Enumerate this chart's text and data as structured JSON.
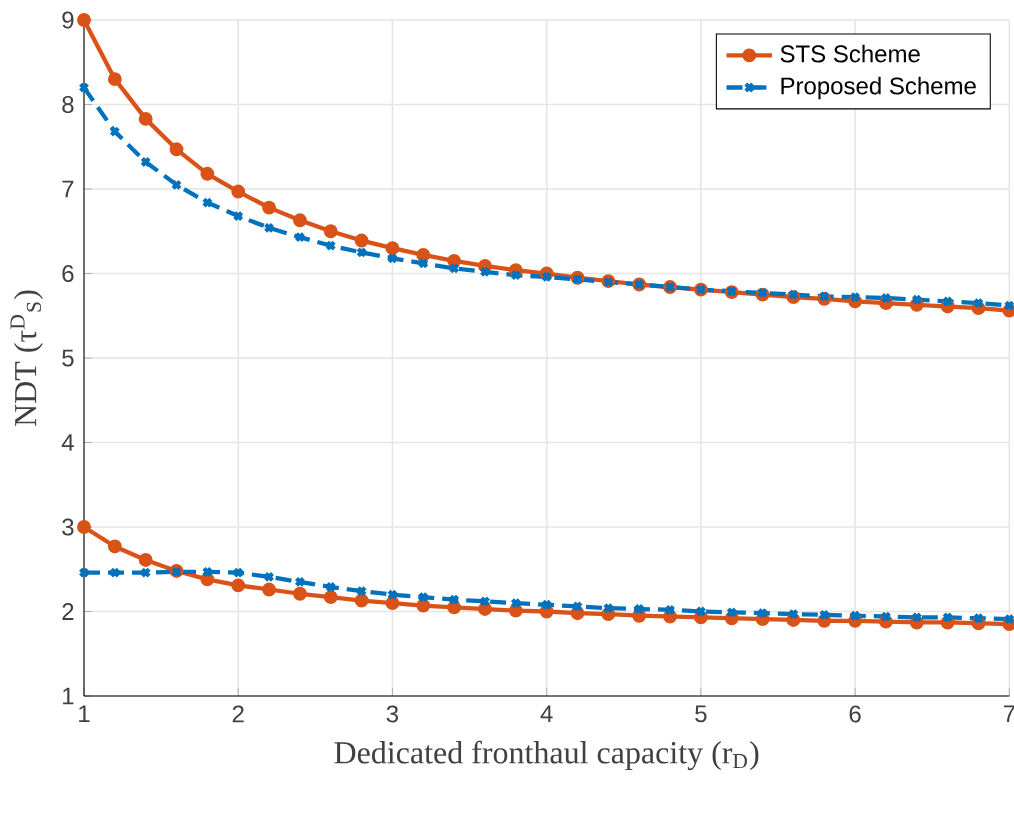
{
  "chart_data": {
    "type": "line",
    "xlabel": "Dedicated fronthaul capacity (r$_{D}$)",
    "ylabel": "NDT (τ$^{D}$$_{S}$)",
    "x": [
      1,
      1.2,
      1.4,
      1.6,
      1.8,
      2,
      2.2,
      2.4,
      2.6,
      2.8,
      3,
      3.2,
      3.4,
      3.6,
      3.8,
      4,
      4.2,
      4.4,
      4.6,
      4.8,
      5,
      5.2,
      5.4,
      5.6,
      5.8,
      6,
      6.2,
      6.4,
      6.6,
      6.8,
      7
    ],
    "xlim": [
      1,
      7
    ],
    "xticks": [
      1,
      2,
      3,
      4,
      5,
      6,
      7
    ],
    "ylim": [
      1,
      9
    ],
    "yticks": [
      1,
      2,
      3,
      4,
      5,
      6,
      7,
      8,
      9
    ],
    "grid": true,
    "legend": "top right",
    "series": [
      {
        "name": "STS Scheme",
        "color": "#d95319",
        "marker": "circle",
        "line_style": "solid",
        "values": [
          9,
          8.3,
          7.83,
          7.47,
          7.18,
          6.97,
          6.78,
          6.63,
          6.5,
          6.39,
          6.3,
          6.22,
          6.15,
          6.09,
          6.04,
          6.0,
          5.95,
          5.91,
          5.87,
          5.84,
          5.81,
          5.78,
          5.75,
          5.72,
          5.7,
          5.67,
          5.65,
          5.63,
          5.61,
          5.59,
          5.56
        ]
      },
      {
        "name": "Proposed Scheme",
        "color": "#0072bd",
        "marker": "cross",
        "line_style": "dashed",
        "values": [
          8.2,
          7.68,
          7.32,
          7.05,
          6.84,
          6.68,
          6.54,
          6.43,
          6.33,
          6.25,
          6.18,
          6.12,
          6.06,
          6.02,
          5.98,
          5.96,
          5.93,
          5.9,
          5.87,
          5.84,
          5.81,
          5.79,
          5.77,
          5.75,
          5.73,
          5.72,
          5.71,
          5.69,
          5.67,
          5.65,
          5.62
        ]
      },
      {
        "color": "#d95319",
        "marker": "circle",
        "line_style": "solid",
        "values": [
          3,
          2.77,
          2.61,
          2.48,
          2.38,
          2.31,
          2.26,
          2.21,
          2.17,
          2.13,
          2.1,
          2.07,
          2.05,
          2.03,
          2.01,
          2.0,
          1.98,
          1.97,
          1.95,
          1.94,
          1.93,
          1.92,
          1.91,
          1.9,
          1.89,
          1.89,
          1.88,
          1.87,
          1.87,
          1.86,
          1.85
        ]
      },
      {
        "color": "#0072bd",
        "marker": "cross",
        "line_style": "dashed",
        "values": [
          2.46,
          2.46,
          2.46,
          2.47,
          2.47,
          2.46,
          2.41,
          2.35,
          2.29,
          2.24,
          2.2,
          2.17,
          2.14,
          2.12,
          2.1,
          2.08,
          2.06,
          2.04,
          2.03,
          2.02,
          2.0,
          1.99,
          1.98,
          1.97,
          1.96,
          1.95,
          1.94,
          1.93,
          1.93,
          1.92,
          1.91
        ]
      }
    ]
  }
}
